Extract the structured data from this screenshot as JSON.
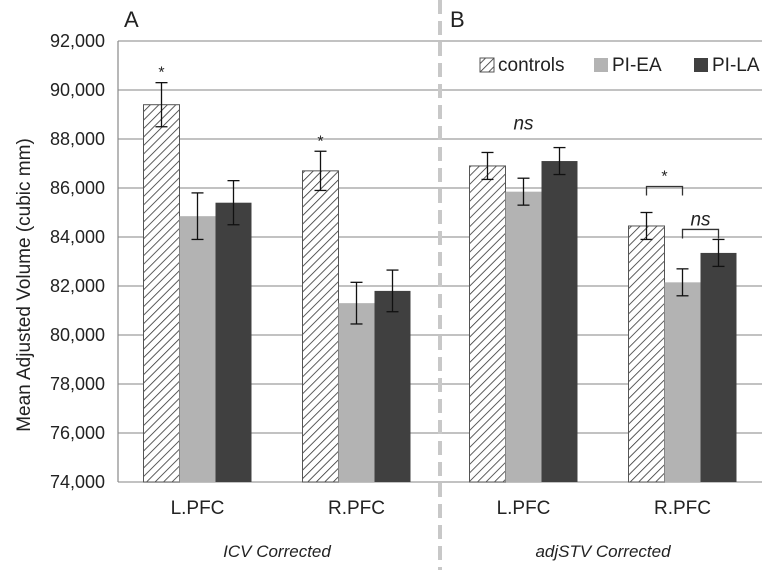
{
  "chart_data": {
    "type": "bar",
    "ylabel": "Mean Adjusted Volume (cubic mm)",
    "ylim": [
      74000,
      92000
    ],
    "yticks": [
      74000,
      76000,
      78000,
      80000,
      82000,
      84000,
      86000,
      88000,
      90000,
      92000
    ],
    "ytick_labels": [
      "74,000",
      "76,000",
      "78,000",
      "80,000",
      "82,000",
      "84,000",
      "86,000",
      "88,000",
      "90,000",
      "92,000"
    ],
    "grid": true,
    "legend_position": "top-right",
    "colors": {
      "controls": "#ffffff",
      "PI-EA": "#b3b3b3",
      "PI-LA": "#404040",
      "grid": "#9e9e9e",
      "divider": "#c8c8c8"
    },
    "series_names": [
      "controls",
      "PI-EA",
      "PI-LA"
    ],
    "panels": [
      {
        "letter": "A",
        "subtitle": "ICV Corrected",
        "categories": [
          "L.PFC",
          "R.PFC"
        ],
        "series": [
          {
            "name": "controls",
            "values": [
              89400,
              86700
            ],
            "errors": [
              900,
              800
            ]
          },
          {
            "name": "PI-EA",
            "values": [
              84850,
              81300
            ],
            "errors": [
              950,
              850
            ]
          },
          {
            "name": "PI-LA",
            "values": [
              85400,
              81800
            ],
            "errors": [
              900,
              850
            ]
          }
        ],
        "annotations": [
          {
            "text": "*",
            "category": 0,
            "series": 0
          },
          {
            "text": "*",
            "category": 1,
            "series": 0
          }
        ]
      },
      {
        "letter": "B",
        "subtitle": "adjSTV Corrected",
        "categories": [
          "L.PFC",
          "R.PFC"
        ],
        "series": [
          {
            "name": "controls",
            "values": [
              86900,
              84450
            ],
            "errors": [
              550,
              550
            ]
          },
          {
            "name": "PI-EA",
            "values": [
              85850,
              82150
            ],
            "errors": [
              550,
              550
            ]
          },
          {
            "name": "PI-LA",
            "values": [
              87100,
              83350
            ],
            "errors": [
              550,
              550
            ]
          }
        ],
        "annotations": [
          {
            "text": "ns",
            "category": 0,
            "series": 1
          },
          {
            "text": "*",
            "category": 1,
            "from_series": 0,
            "to_series": 1
          },
          {
            "text": "ns",
            "category": 1,
            "from_series": 1,
            "to_series": 2
          }
        ]
      }
    ]
  }
}
